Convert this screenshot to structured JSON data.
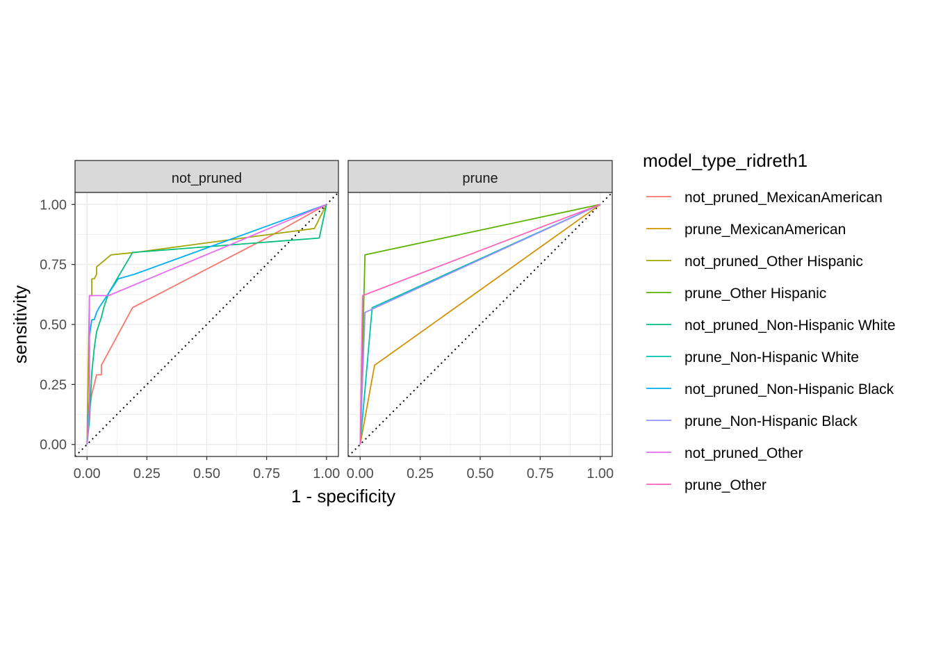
{
  "chart_data": {
    "type": "line",
    "xlabel": "1 - specificity",
    "ylabel": "sensitivity",
    "xlim": [
      0,
      1
    ],
    "ylim": [
      0,
      1
    ],
    "x_ticks": [
      "0.00",
      "0.25",
      "0.50",
      "0.75",
      "1.00"
    ],
    "y_ticks": [
      "0.00",
      "0.25",
      "0.50",
      "0.75",
      "1.00"
    ],
    "grid": true,
    "reference_line": "diagonal dotted",
    "legend_title": "model_type_ridreth1",
    "legend_position": "right",
    "panels": [
      {
        "label": "not_pruned",
        "series": [
          {
            "name": "not_pruned_MexicanAmerican",
            "color": "#F8766D",
            "x": [
              0,
              0.01,
              0.02,
              0.03,
              0.04,
              0.06,
              0.06,
              0.19,
              0.75,
              1.0
            ],
            "y": [
              0,
              0.14,
              0.21,
              0.25,
              0.29,
              0.29,
              0.33,
              0.57,
              0.86,
              1.0
            ]
          },
          {
            "name": "not_pruned_Other Hispanic",
            "color": "#A3A500",
            "x": [
              0,
              0.01,
              0.02,
              0.02,
              0.03,
              0.04,
              0.04,
              0.1,
              0.2,
              0.95,
              1.0
            ],
            "y": [
              0,
              0.62,
              0.62,
              0.69,
              0.69,
              0.71,
              0.74,
              0.79,
              0.8,
              0.9,
              1.0
            ]
          },
          {
            "name": "not_pruned_Non-Hispanic White",
            "color": "#00BF7D",
            "x": [
              0,
              0.01,
              0.02,
              0.03,
              0.04,
              0.06,
              0.07,
              0.09,
              0.19,
              0.97,
              1.0
            ],
            "y": [
              0,
              0.1,
              0.3,
              0.4,
              0.47,
              0.53,
              0.57,
              0.63,
              0.8,
              0.86,
              1.0
            ]
          },
          {
            "name": "not_pruned_Non-Hispanic Black",
            "color": "#00B0F6",
            "x": [
              0,
              0.01,
              0.01,
              0.02,
              0.03,
              0.04,
              0.05,
              0.07,
              0.13,
              0.2,
              1.0
            ],
            "y": [
              0,
              0.2,
              0.45,
              0.52,
              0.52,
              0.55,
              0.57,
              0.6,
              0.69,
              0.71,
              1.0
            ]
          },
          {
            "name": "not_pruned_Other",
            "color": "#E76BF3",
            "x": [
              0,
              0.01,
              0.01,
              0.09,
              1.0
            ],
            "y": [
              0,
              0.15,
              0.62,
              0.62,
              1.0
            ]
          }
        ]
      },
      {
        "label": "prune",
        "series": [
          {
            "name": "prune_MexicanAmerican",
            "color": "#D39200",
            "x": [
              0,
              0.06,
              1.0
            ],
            "y": [
              0,
              0.33,
              1.0
            ]
          },
          {
            "name": "prune_Other Hispanic",
            "color": "#5BB300",
            "x": [
              0,
              0.02,
              1.0
            ],
            "y": [
              0,
              0.79,
              1.0
            ]
          },
          {
            "name": "prune_Non-Hispanic White",
            "color": "#00C0AF",
            "x": [
              0,
              0.05,
              1.0
            ],
            "y": [
              0,
              0.57,
              1.0
            ]
          },
          {
            "name": "prune_Non-Hispanic Black",
            "color": "#9590FF",
            "x": [
              0,
              0.02,
              1.0
            ],
            "y": [
              0,
              0.55,
              1.0
            ]
          },
          {
            "name": "prune_Other",
            "color": "#FF62BC",
            "x": [
              0,
              0.01,
              1.0
            ],
            "y": [
              0,
              0.62,
              1.0
            ]
          }
        ]
      }
    ],
    "legend": [
      {
        "name": "not_pruned_MexicanAmerican",
        "color": "#F8766D"
      },
      {
        "name": "prune_MexicanAmerican",
        "color": "#D39200"
      },
      {
        "name": "not_pruned_Other Hispanic",
        "color": "#A3A500"
      },
      {
        "name": "prune_Other Hispanic",
        "color": "#5BB300"
      },
      {
        "name": "not_pruned_Non-Hispanic White",
        "color": "#00BF7D"
      },
      {
        "name": "prune_Non-Hispanic White",
        "color": "#00C0AF"
      },
      {
        "name": "not_pruned_Non-Hispanic Black",
        "color": "#00B0F6"
      },
      {
        "name": "prune_Non-Hispanic Black",
        "color": "#9590FF"
      },
      {
        "name": "not_pruned_Other",
        "color": "#E76BF3"
      },
      {
        "name": "prune_Other",
        "color": "#FF62BC"
      }
    ]
  }
}
